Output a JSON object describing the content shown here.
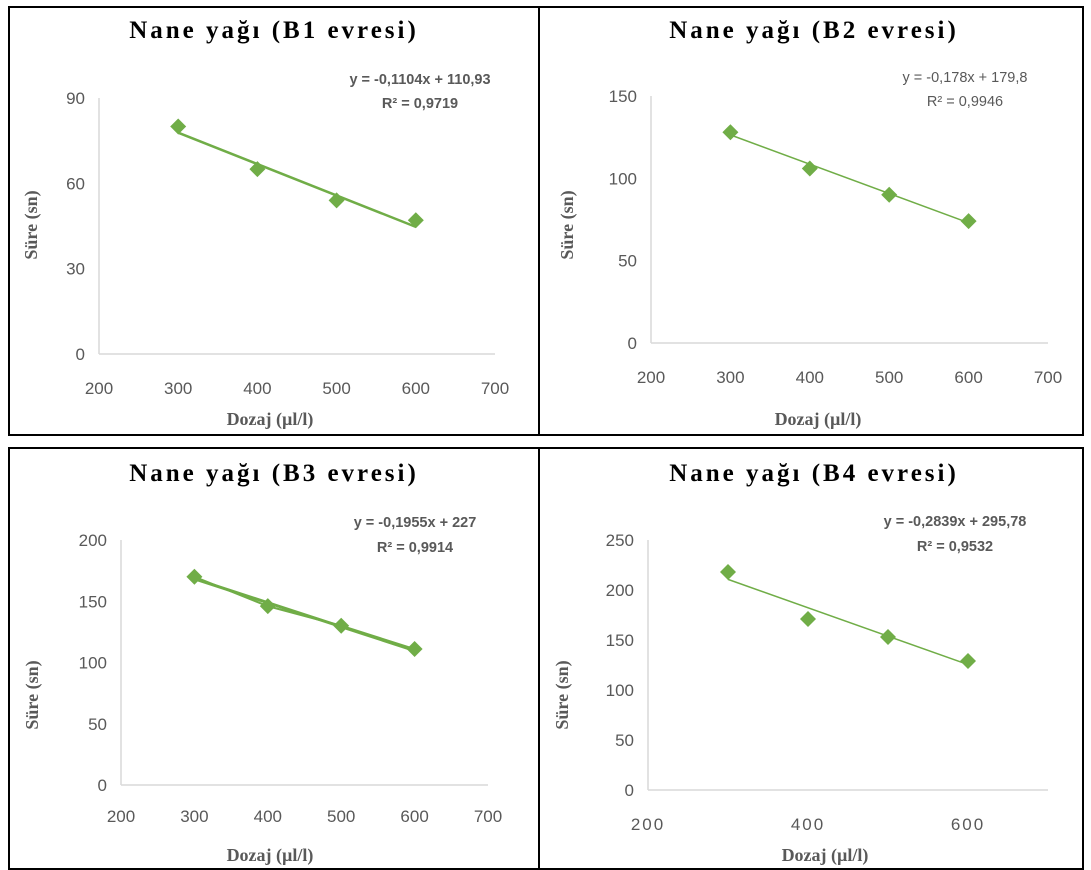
{
  "colors": {
    "marker": "#70ad47",
    "trend": "#70ad47",
    "axis": "#d9d9d9",
    "text": "#595959"
  },
  "chart_data": [
    {
      "type": "scatter",
      "title": "Nane yağı (B1 evresi)",
      "xlabel": "Dozaj (µl/l)",
      "ylabel": "Süre (sn)",
      "xlim": [
        200,
        700
      ],
      "ylim": [
        0,
        90
      ],
      "xticks": [
        "200",
        "300",
        "400",
        "500",
        "600",
        "700"
      ],
      "yticks": [
        "0",
        "30",
        "60",
        "90"
      ],
      "x": [
        300,
        400,
        500,
        600
      ],
      "y": [
        80,
        65,
        54,
        47
      ],
      "trendline": {
        "slope": -0.1104,
        "intercept": 110.93
      },
      "equation": "y = -0,1104x + 110,93",
      "r2": "R² = 0,9719",
      "equation_bold": true
    },
    {
      "type": "scatter",
      "title": "Nane yağı (B2 evresi)",
      "xlabel": "Dozaj (µl/l)",
      "ylabel": "Süre (sn)",
      "xlim": [
        200,
        700
      ],
      "ylim": [
        0,
        150
      ],
      "xticks": [
        "200",
        "300",
        "400",
        "500",
        "600",
        "700"
      ],
      "yticks": [
        "0",
        "50",
        "100",
        "150"
      ],
      "x": [
        300,
        400,
        500,
        600
      ],
      "y": [
        128,
        106,
        90,
        74
      ],
      "trendline": {
        "slope": -0.178,
        "intercept": 179.8
      },
      "equation": "y = -0,178x + 179,8",
      "r2": "R² = 0,9946",
      "equation_bold": false
    },
    {
      "type": "scatter",
      "title": "Nane yağı (B3 evresi)",
      "xlabel": "Dozaj (µl/l)",
      "ylabel": "Süre (sn)",
      "xlim": [
        200,
        700
      ],
      "ylim": [
        0,
        200
      ],
      "xticks": [
        "200",
        "300",
        "400",
        "500",
        "600",
        "700"
      ],
      "yticks": [
        "0",
        "50",
        "100",
        "150",
        "200"
      ],
      "x": [
        300,
        400,
        500,
        600
      ],
      "y": [
        170,
        146,
        130,
        111
      ],
      "trendline": {
        "slope": -0.1955,
        "intercept": 227
      },
      "equation": "y = -0,1955x + 227",
      "r2": "R² = 0,9914",
      "equation_bold": true
    },
    {
      "type": "scatter",
      "title": "Nane yağı (B4 evresi)",
      "xlabel": "Dozaj (µl/l)",
      "ylabel": "Süre (sn)",
      "xlim": [
        200,
        700
      ],
      "ylim": [
        0,
        250
      ],
      "xticks": [
        "200",
        "400",
        "600"
      ],
      "yticks": [
        "0",
        "50",
        "100",
        "150",
        "200",
        "250"
      ],
      "x": [
        300,
        400,
        500,
        600
      ],
      "y": [
        218,
        171,
        153,
        129
      ],
      "trendline": {
        "slope": -0.2839,
        "intercept": 295.78
      },
      "equation": "y = -0,2839x + 295,78",
      "r2": "R² = 0,9532",
      "equation_bold": true
    }
  ]
}
